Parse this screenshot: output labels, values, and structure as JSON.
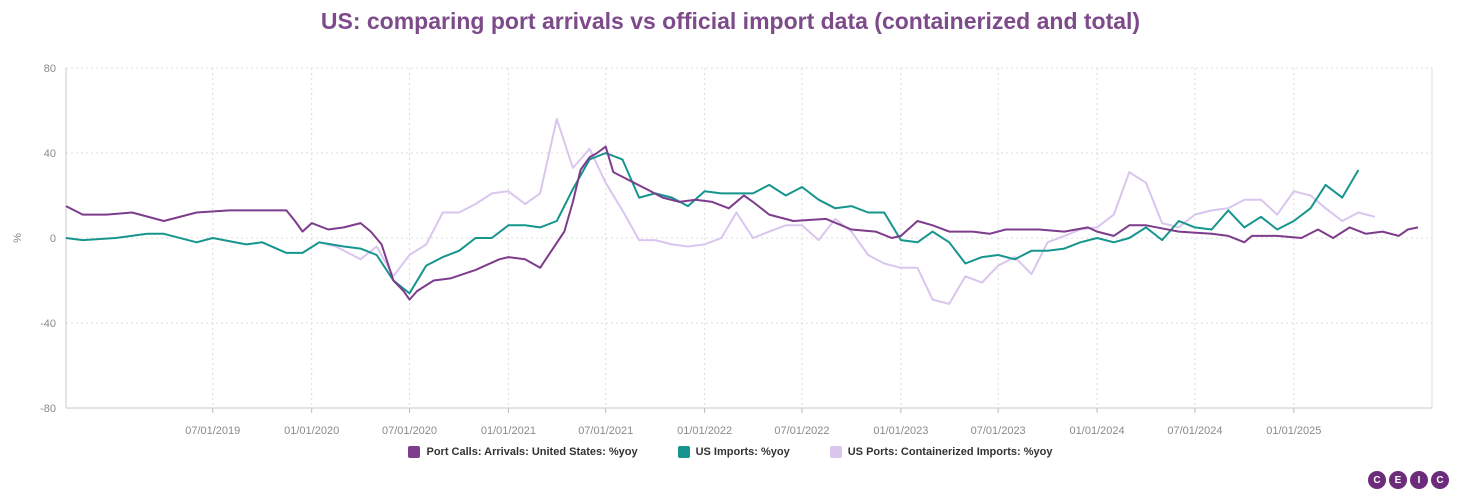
{
  "chart_data": {
    "type": "line",
    "title": "US: comparing port arrivals vs official import data (containerized and total)",
    "ylabel": "%",
    "ylim": [
      -80,
      80
    ],
    "yticks": [
      "80",
      "40",
      "0",
      "-40",
      "-80"
    ],
    "xlim": [
      "2018-10-01",
      "2025-09-15"
    ],
    "xticks": [
      "07/01/2019",
      "01/01/2020",
      "07/01/2020",
      "01/01/2021",
      "07/01/2021",
      "01/01/2022",
      "07/01/2022",
      "01/01/2023",
      "07/01/2023",
      "01/01/2024",
      "07/01/2024",
      "01/01/2025"
    ],
    "grid": true,
    "legend_position": "bottom",
    "series": [
      {
        "name": "Port Calls: Arrivals: United States: %yoy",
        "color": "#7d3c8c",
        "points": [
          [
            "2018-10-01",
            15
          ],
          [
            "2018-11-01",
            11
          ],
          [
            "2018-12-15",
            11
          ],
          [
            "2019-02-01",
            12
          ],
          [
            "2019-04-01",
            8
          ],
          [
            "2019-06-01",
            12
          ],
          [
            "2019-08-01",
            13
          ],
          [
            "2019-10-01",
            13
          ],
          [
            "2019-11-15",
            13
          ],
          [
            "2019-12-01",
            8
          ],
          [
            "2019-12-15",
            3
          ],
          [
            "2020-01-01",
            7
          ],
          [
            "2020-02-01",
            4
          ],
          [
            "2020-03-01",
            5
          ],
          [
            "2020-04-01",
            7
          ],
          [
            "2020-04-20",
            3
          ],
          [
            "2020-05-10",
            -3
          ],
          [
            "2020-06-01",
            -20
          ],
          [
            "2020-06-20",
            -25
          ],
          [
            "2020-07-01",
            -29
          ],
          [
            "2020-07-15",
            -25
          ],
          [
            "2020-08-15",
            -20
          ],
          [
            "2020-09-15",
            -19
          ],
          [
            "2020-11-01",
            -15
          ],
          [
            "2020-12-15",
            -10
          ],
          [
            "2021-01-01",
            -9
          ],
          [
            "2021-02-01",
            -10
          ],
          [
            "2021-03-01",
            -14
          ],
          [
            "2021-04-15",
            3
          ],
          [
            "2021-05-01",
            17
          ],
          [
            "2021-05-15",
            32
          ],
          [
            "2021-06-01",
            38
          ],
          [
            "2021-06-15",
            40
          ],
          [
            "2021-07-01",
            43
          ],
          [
            "2021-07-15",
            31
          ],
          [
            "2021-08-15",
            27
          ],
          [
            "2021-09-15",
            23
          ],
          [
            "2021-10-15",
            19
          ],
          [
            "2021-11-15",
            17
          ],
          [
            "2021-12-15",
            18
          ],
          [
            "2022-01-15",
            17
          ],
          [
            "2022-02-15",
            14
          ],
          [
            "2022-03-15",
            20
          ],
          [
            "2022-04-01",
            17
          ],
          [
            "2022-05-01",
            11
          ],
          [
            "2022-06-15",
            8
          ],
          [
            "2022-08-15",
            9
          ],
          [
            "2022-10-01",
            4
          ],
          [
            "2022-11-15",
            3
          ],
          [
            "2022-12-15",
            0
          ],
          [
            "2023-01-01",
            1
          ],
          [
            "2023-02-01",
            8
          ],
          [
            "2023-03-01",
            6
          ],
          [
            "2023-04-01",
            3
          ],
          [
            "2023-05-15",
            3
          ],
          [
            "2023-06-15",
            2
          ],
          [
            "2023-07-15",
            4
          ],
          [
            "2023-09-15",
            4
          ],
          [
            "2023-11-01",
            3
          ],
          [
            "2023-12-15",
            5
          ],
          [
            "2024-01-01",
            3
          ],
          [
            "2024-02-01",
            1
          ],
          [
            "2024-03-01",
            6
          ],
          [
            "2024-04-01",
            6
          ],
          [
            "2024-06-01",
            3
          ],
          [
            "2024-08-01",
            2
          ],
          [
            "2024-09-01",
            1
          ],
          [
            "2024-10-01",
            -2
          ],
          [
            "2024-10-15",
            1
          ],
          [
            "2024-12-01",
            1
          ],
          [
            "2025-01-15",
            0
          ],
          [
            "2025-02-15",
            4
          ],
          [
            "2025-03-15",
            0
          ],
          [
            "2025-04-15",
            5
          ],
          [
            "2025-05-15",
            2
          ],
          [
            "2025-06-15",
            3
          ],
          [
            "2025-07-15",
            1
          ],
          [
            "2025-08-01",
            4
          ],
          [
            "2025-08-20",
            5
          ]
        ]
      },
      {
        "name": "US Imports: %yoy",
        "color": "#16958e",
        "points": [
          [
            "2018-10-01",
            0
          ],
          [
            "2018-11-01",
            -1
          ],
          [
            "2019-01-01",
            0
          ],
          [
            "2019-03-01",
            2
          ],
          [
            "2019-04-01",
            2
          ],
          [
            "2019-06-01",
            -2
          ],
          [
            "2019-07-01",
            0
          ],
          [
            "2019-09-01",
            -3
          ],
          [
            "2019-10-01",
            -2
          ],
          [
            "2019-11-15",
            -7
          ],
          [
            "2019-12-15",
            -7
          ],
          [
            "2020-01-15",
            -2
          ],
          [
            "2020-03-01",
            -4
          ],
          [
            "2020-04-01",
            -5
          ],
          [
            "2020-05-01",
            -8
          ],
          [
            "2020-06-01",
            -20
          ],
          [
            "2020-07-01",
            -26
          ],
          [
            "2020-08-01",
            -13
          ],
          [
            "2020-09-01",
            -9
          ],
          [
            "2020-10-01",
            -6
          ],
          [
            "2020-11-01",
            0
          ],
          [
            "2020-12-01",
            0
          ],
          [
            "2021-01-01",
            6
          ],
          [
            "2021-02-01",
            6
          ],
          [
            "2021-03-01",
            5
          ],
          [
            "2021-04-01",
            8
          ],
          [
            "2021-05-01",
            23
          ],
          [
            "2021-06-01",
            37
          ],
          [
            "2021-07-01",
            40
          ],
          [
            "2021-08-01",
            37
          ],
          [
            "2021-09-01",
            19
          ],
          [
            "2021-10-01",
            21
          ],
          [
            "2021-11-01",
            19
          ],
          [
            "2021-12-01",
            15
          ],
          [
            "2022-01-01",
            22
          ],
          [
            "2022-02-01",
            21
          ],
          [
            "2022-03-01",
            21
          ],
          [
            "2022-04-01",
            21
          ],
          [
            "2022-05-01",
            25
          ],
          [
            "2022-06-01",
            20
          ],
          [
            "2022-07-01",
            24
          ],
          [
            "2022-08-01",
            18
          ],
          [
            "2022-09-01",
            14
          ],
          [
            "2022-10-01",
            15
          ],
          [
            "2022-11-01",
            12
          ],
          [
            "2022-12-01",
            12
          ],
          [
            "2023-01-01",
            -1
          ],
          [
            "2023-02-01",
            -2
          ],
          [
            "2023-03-01",
            3
          ],
          [
            "2023-04-01",
            -2
          ],
          [
            "2023-05-01",
            -12
          ],
          [
            "2023-06-01",
            -9
          ],
          [
            "2023-07-01",
            -8
          ],
          [
            "2023-08-01",
            -10
          ],
          [
            "2023-09-01",
            -6
          ],
          [
            "2023-10-01",
            -6
          ],
          [
            "2023-11-01",
            -5
          ],
          [
            "2023-12-01",
            -2
          ],
          [
            "2024-01-01",
            0
          ],
          [
            "2024-02-01",
            -2
          ],
          [
            "2024-03-01",
            0
          ],
          [
            "2024-04-01",
            5
          ],
          [
            "2024-05-01",
            -1
          ],
          [
            "2024-06-01",
            8
          ],
          [
            "2024-07-01",
            5
          ],
          [
            "2024-08-01",
            4
          ],
          [
            "2024-09-01",
            13
          ],
          [
            "2024-10-01",
            5
          ],
          [
            "2024-11-01",
            10
          ],
          [
            "2024-12-01",
            4
          ],
          [
            "2025-01-01",
            8
          ],
          [
            "2025-02-01",
            14
          ],
          [
            "2025-03-01",
            25
          ],
          [
            "2025-04-01",
            19
          ],
          [
            "2025-05-01",
            32
          ]
        ]
      },
      {
        "name": "US Ports: Containerized Imports: %yoy",
        "color": "#d9c6ee",
        "points": [
          [
            "2020-01-15",
            -2
          ],
          [
            "2020-02-15",
            -4
          ],
          [
            "2020-04-01",
            -10
          ],
          [
            "2020-05-01",
            -4
          ],
          [
            "2020-06-01",
            -18
          ],
          [
            "2020-07-01",
            -8
          ],
          [
            "2020-08-01",
            -3
          ],
          [
            "2020-09-01",
            12
          ],
          [
            "2020-10-01",
            12
          ],
          [
            "2020-11-01",
            16
          ],
          [
            "2020-12-01",
            21
          ],
          [
            "2021-01-01",
            22
          ],
          [
            "2021-02-01",
            16
          ],
          [
            "2021-03-01",
            21
          ],
          [
            "2021-04-01",
            56
          ],
          [
            "2021-05-01",
            33
          ],
          [
            "2021-06-01",
            42
          ],
          [
            "2021-07-01",
            26
          ],
          [
            "2021-08-01",
            13
          ],
          [
            "2021-09-01",
            -1
          ],
          [
            "2021-10-01",
            -1
          ],
          [
            "2021-11-01",
            -3
          ],
          [
            "2021-12-01",
            -4
          ],
          [
            "2022-01-01",
            -3
          ],
          [
            "2022-02-01",
            0
          ],
          [
            "2022-03-01",
            12
          ],
          [
            "2022-04-01",
            0
          ],
          [
            "2022-05-01",
            3
          ],
          [
            "2022-06-01",
            6
          ],
          [
            "2022-07-01",
            6
          ],
          [
            "2022-08-01",
            -1
          ],
          [
            "2022-09-01",
            9
          ],
          [
            "2022-10-01",
            3
          ],
          [
            "2022-11-01",
            -8
          ],
          [
            "2022-12-01",
            -12
          ],
          [
            "2023-01-01",
            -14
          ],
          [
            "2023-02-01",
            -14
          ],
          [
            "2023-03-01",
            -29
          ],
          [
            "2023-04-01",
            -31
          ],
          [
            "2023-05-01",
            -18
          ],
          [
            "2023-06-01",
            -21
          ],
          [
            "2023-07-01",
            -13
          ],
          [
            "2023-08-01",
            -9
          ],
          [
            "2023-09-01",
            -17
          ],
          [
            "2023-10-01",
            -2
          ],
          [
            "2023-11-01",
            1
          ],
          [
            "2023-12-01",
            4
          ],
          [
            "2024-01-01",
            5
          ],
          [
            "2024-02-01",
            11
          ],
          [
            "2024-03-01",
            31
          ],
          [
            "2024-04-01",
            26
          ],
          [
            "2024-05-01",
            7
          ],
          [
            "2024-06-01",
            5
          ],
          [
            "2024-07-01",
            11
          ],
          [
            "2024-08-01",
            13
          ],
          [
            "2024-09-01",
            14
          ],
          [
            "2024-10-01",
            18
          ],
          [
            "2024-11-01",
            18
          ],
          [
            "2024-12-01",
            11
          ],
          [
            "2025-01-01",
            22
          ],
          [
            "2025-02-01",
            20
          ],
          [
            "2025-03-01",
            14
          ],
          [
            "2025-04-01",
            8
          ],
          [
            "2025-05-01",
            12
          ],
          [
            "2025-06-01",
            10
          ]
        ]
      }
    ]
  },
  "logo": {
    "letters": [
      "C",
      "E",
      "I",
      "C"
    ]
  }
}
